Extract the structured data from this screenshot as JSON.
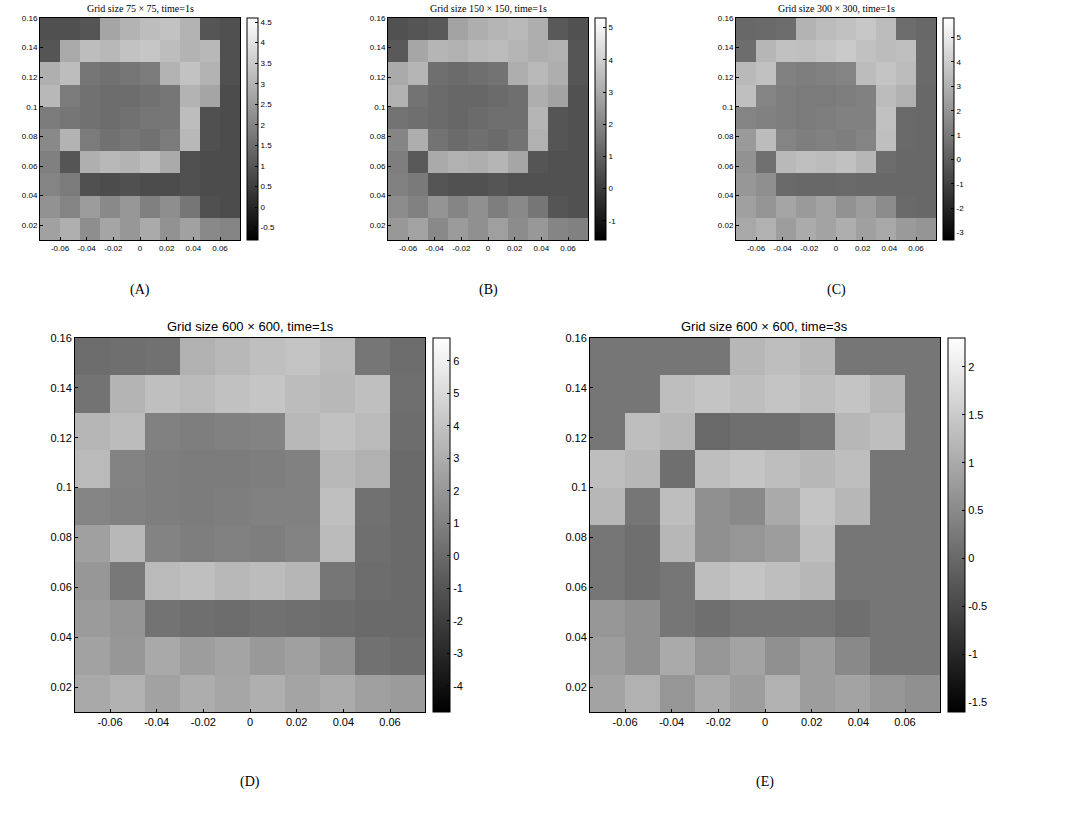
{
  "chart_data": [
    {
      "type": "heatmap",
      "title": "Grid size 75 × 75, time=1s",
      "label": "(A)",
      "x": [
        -0.0675,
        -0.0525,
        -0.0375,
        -0.0225,
        -0.0075,
        0.0075,
        0.0225,
        0.0375,
        0.0525,
        0.0675
      ],
      "y": [
        0.0175,
        0.0325,
        0.0475,
        0.0625,
        0.0775,
        0.0925,
        0.1075,
        0.1225,
        0.1375,
        0.1525
      ],
      "z": [
        [
          2.6,
          2.9,
          2.2,
          2.7,
          2.4,
          2.8,
          2.3,
          2.6,
          2.1,
          2.0
        ],
        [
          2.3,
          2.0,
          2.5,
          2.1,
          2.4,
          1.9,
          2.2,
          1.7,
          0.9,
          0.8
        ],
        [
          2.0,
          1.8,
          0.9,
          0.8,
          0.9,
          0.8,
          0.8,
          0.9,
          0.8,
          0.8
        ],
        [
          1.9,
          1.0,
          2.9,
          3.1,
          3.0,
          3.2,
          2.8,
          0.9,
          0.8,
          0.8
        ],
        [
          2.1,
          3.0,
          1.8,
          1.6,
          1.7,
          1.6,
          1.8,
          3.1,
          0.9,
          0.8
        ],
        [
          1.8,
          1.7,
          1.6,
          1.5,
          1.6,
          1.7,
          1.7,
          3.2,
          0.9,
          0.8
        ],
        [
          3.1,
          1.8,
          1.6,
          1.5,
          1.5,
          1.6,
          1.7,
          3.0,
          2.7,
          0.8
        ],
        [
          2.9,
          3.2,
          1.7,
          1.6,
          1.7,
          1.8,
          3.0,
          3.3,
          3.0,
          0.9
        ],
        [
          1.0,
          2.8,
          3.2,
          3.1,
          3.3,
          3.4,
          3.2,
          3.0,
          3.1,
          0.9
        ],
        [
          0.9,
          0.9,
          1.0,
          2.7,
          3.0,
          3.2,
          3.3,
          3.0,
          1.0,
          0.9
        ]
      ],
      "xlim": [
        -0.075,
        0.075
      ],
      "ylim": [
        0.01,
        0.16
      ],
      "xticks": [
        -0.06,
        -0.04,
        -0.02,
        0,
        0.02,
        0.04,
        0.06
      ],
      "yticks": [
        0.02,
        0.04,
        0.06,
        0.08,
        0.1,
        0.12,
        0.14,
        0.16
      ],
      "colorbar_range": [
        -0.8,
        4.6
      ],
      "colorbar_ticks": [
        -0.5,
        0,
        0.5,
        1,
        1.5,
        2,
        2.5,
        3,
        3.5,
        4,
        4.5
      ]
    },
    {
      "type": "heatmap",
      "title": "Grid size 150 × 150, time=1s",
      "label": "(B)",
      "x": [
        -0.0675,
        -0.0525,
        -0.0375,
        -0.0225,
        -0.0075,
        0.0075,
        0.0225,
        0.0375,
        0.0525,
        0.0675
      ],
      "y": [
        0.0175,
        0.0325,
        0.0475,
        0.0625,
        0.0775,
        0.0925,
        0.1075,
        0.1225,
        0.1375,
        0.1525
      ],
      "z": [
        [
          2.5,
          2.8,
          2.1,
          2.6,
          2.3,
          2.7,
          2.2,
          2.5,
          2.0,
          1.9
        ],
        [
          2.2,
          1.9,
          2.4,
          2.0,
          2.3,
          1.8,
          2.1,
          1.6,
          0.7,
          0.6
        ],
        [
          1.9,
          1.7,
          0.7,
          0.6,
          0.6,
          0.7,
          0.6,
          0.6,
          0.6,
          0.6
        ],
        [
          1.8,
          0.8,
          3.0,
          3.2,
          3.1,
          3.3,
          2.9,
          0.7,
          0.6,
          0.6
        ],
        [
          2.0,
          3.1,
          1.5,
          1.3,
          1.4,
          1.3,
          1.5,
          3.2,
          0.7,
          0.6
        ],
        [
          1.5,
          1.4,
          1.3,
          1.2,
          1.3,
          1.4,
          1.4,
          3.3,
          0.7,
          0.6
        ],
        [
          3.2,
          1.5,
          1.3,
          1.2,
          1.2,
          1.3,
          1.4,
          3.1,
          2.8,
          0.6
        ],
        [
          3.0,
          3.3,
          1.4,
          1.3,
          1.4,
          1.5,
          3.1,
          3.4,
          3.1,
          0.7
        ],
        [
          0.8,
          2.9,
          3.3,
          3.2,
          3.4,
          3.5,
          3.3,
          3.1,
          3.2,
          0.7
        ],
        [
          0.6,
          0.7,
          0.8,
          2.8,
          3.1,
          3.3,
          3.4,
          3.1,
          0.8,
          0.6
        ]
      ],
      "xlim": [
        -0.075,
        0.075
      ],
      "ylim": [
        0.01,
        0.16
      ],
      "xticks": [
        -0.06,
        -0.04,
        -0.02,
        0,
        0.02,
        0.04,
        0.06
      ],
      "yticks": [
        0.02,
        0.04,
        0.06,
        0.08,
        0.1,
        0.12,
        0.14,
        0.16
      ],
      "colorbar_range": [
        -1.6,
        5.3
      ],
      "colorbar_ticks": [
        -1,
        0,
        1,
        2,
        3,
        4,
        5
      ]
    },
    {
      "type": "heatmap",
      "title": "Grid size 300 × 300, time=1s",
      "label": "(C)",
      "x": [
        -0.0675,
        -0.0525,
        -0.0375,
        -0.0225,
        -0.0075,
        0.0075,
        0.0225,
        0.0375,
        0.0525,
        0.0675
      ],
      "y": [
        0.0175,
        0.0325,
        0.0475,
        0.0625,
        0.0775,
        0.0925,
        0.1075,
        0.1225,
        0.1375,
        0.1525
      ],
      "z": [
        [
          2.7,
          3.0,
          2.3,
          2.8,
          2.5,
          2.9,
          2.4,
          2.7,
          2.2,
          2.0
        ],
        [
          2.4,
          2.0,
          2.6,
          2.2,
          2.5,
          1.9,
          2.3,
          1.7,
          0.5,
          0.4
        ],
        [
          2.1,
          1.8,
          0.5,
          0.4,
          0.4,
          0.5,
          0.4,
          0.4,
          0.4,
          0.4
        ],
        [
          1.9,
          0.7,
          3.3,
          3.5,
          3.4,
          3.6,
          3.2,
          0.6,
          0.4,
          0.4
        ],
        [
          2.2,
          3.4,
          1.4,
          1.2,
          1.3,
          1.2,
          1.4,
          3.5,
          0.5,
          0.4
        ],
        [
          1.4,
          1.3,
          1.2,
          1.1,
          1.2,
          1.3,
          1.3,
          3.6,
          0.5,
          0.4
        ],
        [
          3.5,
          1.4,
          1.2,
          1.1,
          1.1,
          1.2,
          1.3,
          3.4,
          3.0,
          0.4
        ],
        [
          3.3,
          3.6,
          1.3,
          1.2,
          1.3,
          1.4,
          3.4,
          3.7,
          3.4,
          0.5
        ],
        [
          0.6,
          3.2,
          3.6,
          3.5,
          3.7,
          3.9,
          3.6,
          3.4,
          3.5,
          0.5
        ],
        [
          0.4,
          0.5,
          0.6,
          3.1,
          3.4,
          3.6,
          3.8,
          3.4,
          0.6,
          0.4
        ]
      ],
      "xlim": [
        -0.075,
        0.075
      ],
      "ylim": [
        0.01,
        0.16
      ],
      "xticks": [
        -0.06,
        -0.04,
        -0.02,
        0,
        0.02,
        0.04,
        0.06
      ],
      "yticks": [
        0.02,
        0.04,
        0.06,
        0.08,
        0.1,
        0.12,
        0.14,
        0.16
      ],
      "colorbar_range": [
        -3.3,
        5.8
      ],
      "colorbar_ticks": [
        -3,
        -2,
        -1,
        0,
        1,
        2,
        3,
        4,
        5
      ]
    },
    {
      "type": "heatmap",
      "title": "Grid size 600 × 600, time=1s",
      "label": "(D)",
      "x": [
        -0.0675,
        -0.0525,
        -0.0375,
        -0.0225,
        -0.0075,
        0.0075,
        0.0225,
        0.0375,
        0.0525,
        0.0675
      ],
      "y": [
        0.0175,
        0.0325,
        0.0475,
        0.0625,
        0.0775,
        0.0925,
        0.1075,
        0.1225,
        0.1375,
        0.1525
      ],
      "z": [
        [
          2.8,
          3.2,
          2.5,
          3.0,
          2.7,
          3.1,
          2.6,
          2.9,
          2.4,
          2.2
        ],
        [
          2.5,
          2.0,
          2.8,
          2.3,
          2.6,
          2.1,
          2.4,
          1.8,
          0.3,
          0.1
        ],
        [
          2.2,
          1.9,
          0.4,
          0.2,
          0.1,
          0.3,
          0.2,
          0.1,
          0.0,
          0.0
        ],
        [
          2.0,
          0.6,
          3.6,
          3.8,
          3.5,
          3.7,
          3.4,
          0.5,
          0.1,
          0.0
        ],
        [
          2.4,
          3.5,
          1.1,
          0.9,
          1.0,
          0.9,
          1.1,
          3.6,
          0.2,
          0.0
        ],
        [
          1.2,
          1.0,
          0.9,
          0.8,
          0.9,
          1.0,
          1.0,
          3.8,
          0.3,
          0.0
        ],
        [
          3.6,
          1.1,
          0.9,
          0.8,
          0.8,
          0.9,
          1.0,
          3.5,
          3.2,
          0.0
        ],
        [
          3.4,
          3.7,
          1.0,
          0.9,
          1.0,
          1.1,
          3.5,
          3.9,
          3.6,
          0.1
        ],
        [
          0.4,
          3.3,
          3.8,
          3.6,
          3.9,
          4.1,
          3.7,
          3.5,
          3.8,
          0.2
        ],
        [
          0.1,
          0.2,
          0.3,
          3.2,
          3.5,
          3.8,
          4.0,
          3.6,
          0.5,
          0.1
        ]
      ],
      "xlim": [
        -0.075,
        0.075
      ],
      "ylim": [
        0.01,
        0.16
      ],
      "xticks": [
        -0.06,
        -0.04,
        -0.02,
        0,
        0.02,
        0.04,
        0.06
      ],
      "yticks": [
        0.02,
        0.04,
        0.06,
        0.08,
        0.1,
        0.12,
        0.14,
        0.16
      ],
      "colorbar_range": [
        -4.8,
        6.7
      ],
      "colorbar_ticks": [
        -4,
        -3,
        -2,
        -1,
        0,
        1,
        2,
        3,
        4,
        5,
        6
      ]
    },
    {
      "type": "heatmap",
      "title": "Grid size 600 × 600, time=3s",
      "label": "(E)",
      "x": [
        -0.0675,
        -0.0525,
        -0.0375,
        -0.0225,
        -0.0075,
        0.0075,
        0.0225,
        0.0375,
        0.0525,
        0.0675
      ],
      "y": [
        0.0175,
        0.0325,
        0.0475,
        0.0625,
        0.0775,
        0.0925,
        0.1075,
        0.1225,
        0.1375,
        0.1525
      ],
      "z": [
        [
          0.9,
          1.1,
          0.7,
          1.0,
          0.8,
          1.1,
          0.8,
          0.9,
          0.7,
          0.6
        ],
        [
          0.8,
          0.6,
          1.0,
          0.7,
          0.9,
          0.6,
          0.8,
          0.5,
          0.2,
          0.2
        ],
        [
          0.7,
          0.6,
          0.2,
          0.1,
          0.2,
          0.2,
          0.2,
          0.1,
          0.2,
          0.2
        ],
        [
          0.2,
          0.1,
          0.2,
          1.3,
          1.4,
          1.3,
          1.2,
          0.2,
          0.2,
          0.2
        ],
        [
          0.2,
          0.1,
          1.2,
          0.6,
          0.7,
          0.8,
          1.3,
          0.2,
          0.2,
          0.2
        ],
        [
          1.2,
          0.2,
          1.3,
          0.6,
          0.5,
          1.0,
          1.4,
          1.2,
          0.2,
          0.2
        ],
        [
          1.3,
          1.2,
          0.1,
          1.3,
          1.4,
          1.3,
          1.2,
          1.3,
          0.2,
          0.2
        ],
        [
          0.2,
          1.3,
          1.2,
          0.0,
          0.1,
          0.1,
          0.2,
          1.2,
          1.3,
          0.2
        ],
        [
          0.2,
          0.2,
          1.3,
          1.4,
          1.3,
          1.4,
          1.3,
          1.4,
          1.2,
          0.2
        ],
        [
          0.2,
          0.2,
          0.2,
          0.2,
          1.2,
          1.3,
          1.2,
          0.2,
          0.2,
          0.2
        ]
      ],
      "xlim": [
        -0.075,
        0.075
      ],
      "ylim": [
        0.01,
        0.16
      ],
      "xticks": [
        -0.06,
        -0.04,
        -0.02,
        0,
        0.02,
        0.04,
        0.06
      ],
      "yticks": [
        0.02,
        0.04,
        0.06,
        0.08,
        0.1,
        0.12,
        0.14,
        0.16
      ],
      "colorbar_range": [
        -1.6,
        2.3
      ],
      "colorbar_ticks": [
        -1.5,
        -1,
        -0.5,
        0,
        0.5,
        1,
        1.5,
        2
      ]
    }
  ]
}
